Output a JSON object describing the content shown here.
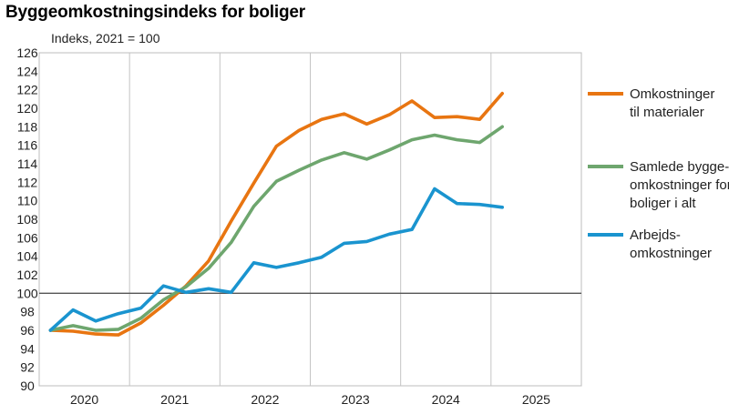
{
  "title": "Byggeomkostningsindeks for boliger",
  "chart_data": {
    "type": "line",
    "title": "Byggeomkostningsindeks for boliger",
    "ylabel": "Indeks, 2021 = 100",
    "xlabel": "",
    "ylim": [
      90,
      126
    ],
    "y_ticks": [
      90,
      92,
      94,
      96,
      98,
      100,
      102,
      104,
      106,
      108,
      110,
      112,
      114,
      116,
      118,
      120,
      122,
      124,
      126
    ],
    "x_categories": [
      "2020",
      "2021",
      "2022",
      "2023",
      "2024",
      "2025"
    ],
    "quarters": [
      "2020K1",
      "2020K2",
      "2020K3",
      "2020K4",
      "2021K1",
      "2021K2",
      "2021K3",
      "2021K4",
      "2022K1",
      "2022K2",
      "2022K3",
      "2022K4",
      "2023K1",
      "2023K2",
      "2023K3",
      "2023K4",
      "2024K1",
      "2024K2",
      "2024K3",
      "2024K4",
      "2025K1"
    ],
    "reference_line": 100,
    "grid": "vertical",
    "legend_position": "right",
    "series": [
      {
        "name": "Omkostninger til materialer",
        "legend_lines": [
          "Omkostninger",
          "til materialer"
        ],
        "color": "#e87511",
        "values": [
          96.0,
          95.9,
          95.6,
          95.5,
          96.8,
          98.7,
          100.8,
          103.5,
          107.8,
          111.9,
          115.9,
          117.6,
          118.8,
          119.4,
          118.3,
          119.3,
          120.8,
          119.0,
          119.1,
          118.8,
          121.6
        ]
      },
      {
        "name": "Samlede byggeomkostninger for boliger i alt",
        "legend_lines": [
          "Samlede bygge-",
          "omkostninger for",
          "boliger i alt"
        ],
        "color": "#6ea66e",
        "values": [
          96.0,
          96.5,
          96.0,
          96.1,
          97.3,
          99.3,
          100.7,
          102.7,
          105.5,
          109.4,
          112.1,
          113.3,
          114.4,
          115.2,
          114.5,
          115.5,
          116.6,
          117.1,
          116.6,
          116.3,
          118.0
        ]
      },
      {
        "name": "Arbejdsomkostninger",
        "legend_lines": [
          "Arbejds-",
          "omkostninger"
        ],
        "color": "#1a94cf",
        "values": [
          96.0,
          98.2,
          97.0,
          97.8,
          98.4,
          100.8,
          100.1,
          100.5,
          100.1,
          103.3,
          102.8,
          103.3,
          103.9,
          105.4,
          105.6,
          106.4,
          106.9,
          111.3,
          109.7,
          109.6,
          109.3
        ]
      }
    ]
  }
}
